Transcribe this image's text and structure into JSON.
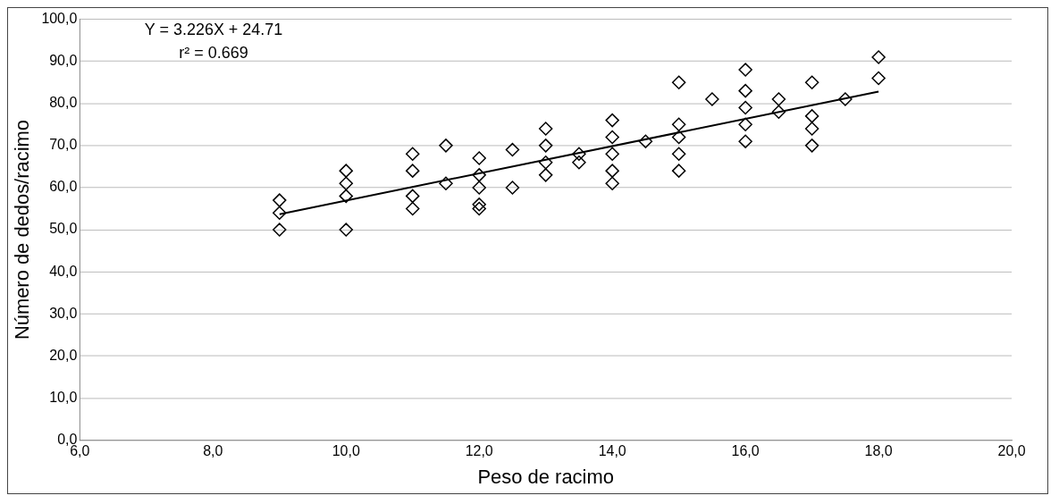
{
  "chart_data": {
    "type": "scatter",
    "xlabel": "Peso de racimo",
    "ylabel": "Número de dedos/racimo",
    "x": [
      9,
      9,
      9,
      10,
      10,
      10,
      10,
      11,
      11,
      11,
      11,
      11.5,
      11.5,
      12,
      12,
      12,
      12,
      12,
      12.5,
      12.5,
      13,
      13,
      13,
      13,
      13.5,
      13.5,
      14,
      14,
      14,
      14,
      14,
      14.5,
      15,
      15,
      15,
      15,
      15,
      15.5,
      16,
      16,
      16,
      16,
      16,
      16.5,
      16.5,
      17,
      17,
      17,
      17,
      17.5,
      18,
      18
    ],
    "series": [
      {
        "color": "#000000",
        "marker": "diamond",
        "values": [
          50,
          54,
          57,
          50,
          58,
          61,
          64,
          55,
          58,
          64,
          68,
          61,
          70,
          55,
          56,
          60,
          63,
          67,
          60,
          69,
          63,
          66,
          70,
          74,
          66,
          68,
          61,
          64,
          68,
          72,
          76,
          71,
          64,
          68,
          72,
          75,
          85,
          81,
          71,
          75,
          79,
          83,
          88,
          78,
          81,
          70,
          74,
          77,
          85,
          81,
          86,
          91
        ]
      },
      {
        "type": "line",
        "color": "#000000",
        "marker": "none",
        "x": [
          9,
          18
        ],
        "values": [
          53.7,
          82.8
        ]
      }
    ],
    "xlim": [
      6,
      20
    ],
    "xticks": [
      {
        "value": 6,
        "label": "6,0"
      },
      {
        "value": 8,
        "label": "8,0"
      },
      {
        "value": 10,
        "label": "10,0"
      },
      {
        "value": 12,
        "label": "12,0"
      },
      {
        "value": 14,
        "label": "14,0"
      },
      {
        "value": 16,
        "label": "16,0"
      },
      {
        "value": 18,
        "label": "18,0"
      },
      {
        "value": 20,
        "label": "20,0"
      }
    ],
    "ylim": [
      0,
      100
    ],
    "yticks": [
      {
        "value": 0,
        "label": "0,0"
      },
      {
        "value": 10,
        "label": "10,0"
      },
      {
        "value": 20,
        "label": "20,0"
      },
      {
        "value": 30,
        "label": "30,0"
      },
      {
        "value": 40,
        "label": "40,0"
      },
      {
        "value": 50,
        "label": "50,0"
      },
      {
        "value": 60,
        "label": "60,0"
      },
      {
        "value": 70,
        "label": "70,0"
      },
      {
        "value": 80,
        "label": "80,0"
      },
      {
        "value": 90,
        "label": "90,0"
      },
      {
        "value": 100,
        "label": "100,0"
      }
    ],
    "grid": "y",
    "legend": false,
    "annotations": [
      "Y = 3.226X + 24.71",
      "r² = 0.669"
    ]
  }
}
